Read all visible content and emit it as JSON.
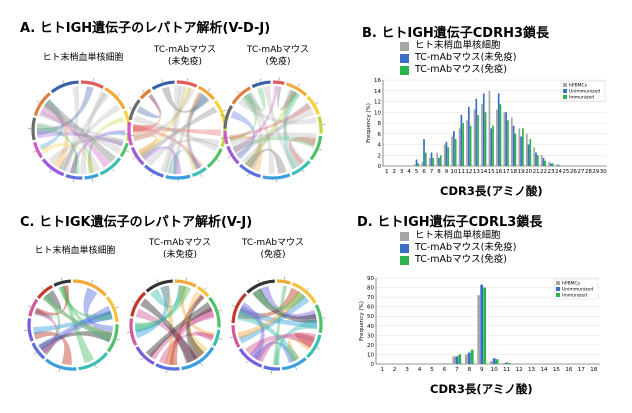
{
  "panels": {
    "A": {
      "title": "A. ヒトIGH遺伝子のレパトア解析(V-D-J)",
      "labels": [
        "ヒト末梢血単核細胞",
        "TC-mAbマウス\n(未免疫)",
        "TC-mAbマウス\n(免疫)"
      ]
    },
    "B": {
      "title": "B. ヒトIGH遺伝子CDRH3鎖長",
      "legend": [
        "ヒト末梢血単核細胞",
        "TC-mAbマウス(未免疫)",
        "TC-mAbマウス(免疫)"
      ],
      "xlabel": "CDR3長(アミノ酸)"
    },
    "C": {
      "title": "C. ヒトIGK遺伝子のレパトア解析(V-J)",
      "labels": [
        "ヒト末梢血単核細胞",
        "TC-mAbマウス\n(未免疫)",
        "TC-mAbマウス\n(免疫)"
      ]
    },
    "D": {
      "title": "D. ヒトIGH遺伝子CDRL3鎖長",
      "legend": [
        "ヒト末梢血単核細胞",
        "TC-mAbマウス(未免疫)",
        "TC-mAbマウス(免疫)"
      ],
      "xlabel": "CDR3長(アミノ酸)"
    }
  },
  "colors": {
    "hpbmc": "#a6a6a6",
    "unimmunized": "#3a6fc4",
    "immunized": "#2db34a"
  },
  "chart_data": [
    {
      "type": "bar",
      "id": "cdrh3",
      "ylabel": "Frequency (%)",
      "ylim": [
        0,
        16
      ],
      "yticks": [
        0,
        2,
        4,
        6,
        8,
        10,
        12,
        14,
        16
      ],
      "categories": [
        1,
        2,
        3,
        4,
        5,
        6,
        7,
        8,
        9,
        10,
        11,
        12,
        13,
        14,
        15,
        16,
        17,
        18,
        19,
        20,
        21,
        22,
        23,
        24,
        25,
        26,
        27,
        28,
        29,
        30
      ],
      "legend_inner": [
        "hPBMCs",
        "Unimmunized",
        "Immunized"
      ],
      "series": [
        {
          "name": "hPBMCs",
          "values": [
            0,
            0,
            0,
            0,
            0.3,
            0.8,
            1.5,
            2.5,
            4,
            5.5,
            7,
            8.5,
            10.5,
            11.5,
            14,
            10.5,
            10,
            9,
            7,
            6,
            3.5,
            2,
            0.8,
            0.3,
            0.1,
            0,
            0,
            0,
            0,
            0
          ]
        },
        {
          "name": "Unimmunized",
          "values": [
            0,
            0,
            0,
            0,
            1.2,
            5,
            2.5,
            1.5,
            4.5,
            6.5,
            9.5,
            11,
            12.5,
            13.5,
            7,
            13.5,
            10,
            7.5,
            5.5,
            4,
            2.5,
            1.5,
            0.5,
            0.2,
            0,
            0,
            0,
            0,
            0,
            0
          ]
        },
        {
          "name": "Immunized",
          "values": [
            0,
            0,
            0,
            0,
            0.5,
            2.5,
            1.5,
            2,
            3.5,
            5,
            8,
            7.5,
            9.5,
            10,
            7.5,
            11.5,
            8.5,
            6,
            7,
            5,
            2,
            1,
            0.5,
            0.1,
            0,
            0,
            0,
            0,
            0,
            0
          ]
        }
      ]
    },
    {
      "type": "bar",
      "id": "cdrl3",
      "ylabel": "Frequency (%)",
      "ylim": [
        0,
        90
      ],
      "yticks": [
        0,
        10,
        20,
        30,
        40,
        50,
        60,
        70,
        80,
        90
      ],
      "categories": [
        1,
        2,
        3,
        4,
        5,
        6,
        7,
        8,
        9,
        10,
        11,
        12,
        13,
        14,
        15,
        16,
        17,
        18
      ],
      "legend_inner": [
        "hPBMCs",
        "Unimmunized",
        "Immunized"
      ],
      "series": [
        {
          "name": "hPBMCs",
          "values": [
            0,
            0,
            0,
            0,
            0,
            0,
            8,
            10,
            72,
            3,
            1,
            0,
            0,
            0,
            0,
            0,
            0,
            0
          ]
        },
        {
          "name": "Unimmunized",
          "values": [
            0,
            0,
            0,
            0,
            0,
            0.5,
            8,
            12,
            83,
            6,
            1.5,
            0,
            0,
            0,
            0,
            0,
            0,
            0
          ]
        },
        {
          "name": "Immunized",
          "values": [
            0,
            0,
            0,
            0,
            0,
            0.5,
            10,
            15,
            80,
            5,
            1,
            0,
            0,
            0,
            0,
            0,
            0,
            0
          ]
        }
      ]
    }
  ]
}
